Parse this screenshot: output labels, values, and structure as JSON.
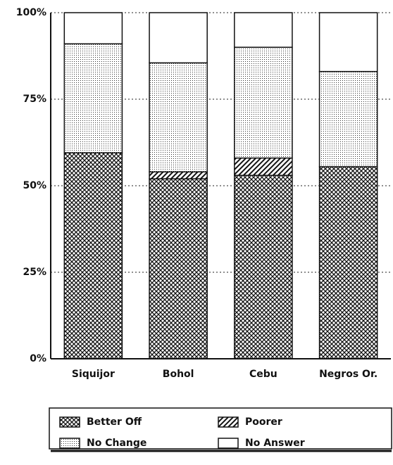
{
  "chart_data": {
    "type": "stacked_bar",
    "categories": [
      "Siquijor",
      "Bohol",
      "Cebu",
      "Negros Or."
    ],
    "series": [
      {
        "name": "Better Off",
        "values": [
          59.5,
          52,
          53,
          55.5
        ]
      },
      {
        "name": "Poorer",
        "values": [
          0,
          2,
          5,
          0
        ]
      },
      {
        "name": "No Change",
        "values": [
          31.5,
          31.5,
          32,
          27.5
        ]
      },
      {
        "name": "No Answer",
        "values": [
          9,
          14.5,
          10,
          17
        ]
      }
    ],
    "ylim": [
      0,
      100
    ],
    "yticks": [
      {
        "value": 0,
        "label": "0%"
      },
      {
        "value": 25,
        "label": "25%"
      },
      {
        "value": 50,
        "label": "50%"
      },
      {
        "value": 75,
        "label": "75%"
      },
      {
        "value": 100,
        "label": "100%"
      }
    ],
    "grid": true
  }
}
